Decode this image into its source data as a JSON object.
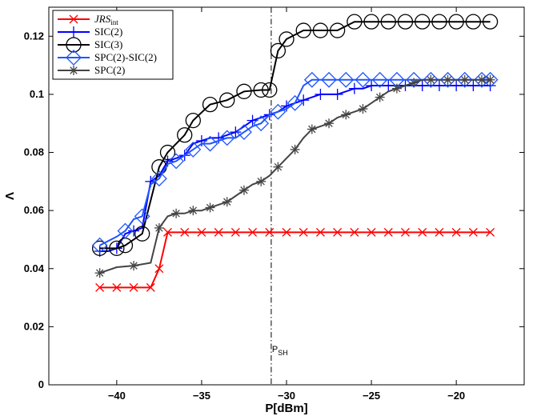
{
  "chart_data": {
    "type": "line",
    "xlabel": "P[dBm]",
    "ylabel": "Λ",
    "xlim": [
      -44,
      -16
    ],
    "ylim": [
      0,
      0.13
    ],
    "xticks": [
      -40,
      -35,
      -30,
      -25,
      -20
    ],
    "xtick_labels": [
      "−40",
      "−35",
      "−30",
      "−25",
      "−20"
    ],
    "yticks": [
      0,
      0.02,
      0.04,
      0.06,
      0.08,
      0.1,
      0.12
    ],
    "ytick_labels": [
      "0",
      "0.02",
      "0.04",
      "0.06",
      "0.08",
      "0.1",
      "0.12"
    ],
    "grid": false,
    "legend_position": "top-left",
    "vline": {
      "x": -30.9,
      "label_main": "P",
      "label_sub": "SH"
    },
    "series": [
      {
        "name": "JRS_int",
        "legend_main": "JRS",
        "legend_sub": "int",
        "color": "#ff0000",
        "marker": "x",
        "x": [
          -41,
          -40,
          -39,
          -38,
          -37.5,
          -37,
          -36,
          -35,
          -34,
          -33,
          -32,
          -31,
          -30,
          -29,
          -28,
          -27,
          -26,
          -25,
          -24,
          -23,
          -22,
          -21,
          -20,
          -19,
          -18
        ],
        "y": [
          0.0335,
          0.0335,
          0.0335,
          0.0335,
          0.04,
          0.0525,
          0.0525,
          0.0525,
          0.0525,
          0.0525,
          0.0525,
          0.0525,
          0.0525,
          0.0525,
          0.0525,
          0.0525,
          0.0525,
          0.0525,
          0.0525,
          0.0525,
          0.0525,
          0.0525,
          0.0525,
          0.0525,
          0.0525
        ]
      },
      {
        "name": "SIC(2)",
        "color": "#0000ff",
        "marker": "+",
        "x": [
          -41,
          -40.5,
          -40,
          -39.5,
          -39,
          -38.5,
          -38,
          -37.5,
          -37,
          -36.5,
          -36,
          -35.5,
          -35,
          -34.5,
          -34,
          -33.5,
          -33,
          -32.5,
          -32,
          -31.5,
          -31,
          -30.5,
          -30,
          -29.5,
          -29,
          -28.5,
          -28,
          -27.5,
          -27,
          -26.5,
          -26,
          -25.5,
          -25,
          -24.5,
          -24,
          -23.5,
          -23,
          -22.5,
          -22,
          -21.5,
          -21,
          -20.5,
          -20,
          -19.5,
          -19,
          -18.5,
          -18
        ],
        "y": [
          0.046,
          0.046,
          0.047,
          0.052,
          0.053,
          0.054,
          0.07,
          0.072,
          0.077,
          0.078,
          0.079,
          0.083,
          0.084,
          0.085,
          0.085,
          0.086,
          0.087,
          0.089,
          0.091,
          0.092,
          0.093,
          0.094,
          0.096,
          0.097,
          0.098,
          0.099,
          0.1,
          0.1,
          0.1,
          0.101,
          0.102,
          0.102,
          0.103,
          0.103,
          0.103,
          0.103,
          0.103,
          0.103,
          0.103,
          0.103,
          0.103,
          0.103,
          0.103,
          0.103,
          0.103,
          0.103,
          0.103
        ]
      },
      {
        "name": "SIC(3)",
        "color": "#000000",
        "marker": "o",
        "x": [
          -41,
          -40,
          -39.5,
          -38.5,
          -37.5,
          -37,
          -36,
          -35.5,
          -34.5,
          -33.5,
          -32.5,
          -31.5,
          -31,
          -30.5,
          -30,
          -29,
          -28,
          -27,
          -26,
          -25,
          -24,
          -23,
          -22,
          -21,
          -20,
          -19,
          -18
        ],
        "y": [
          0.047,
          0.047,
          0.048,
          0.052,
          0.075,
          0.08,
          0.086,
          0.091,
          0.0965,
          0.098,
          0.101,
          0.1015,
          0.1015,
          0.115,
          0.119,
          0.122,
          0.122,
          0.122,
          0.125,
          0.125,
          0.125,
          0.125,
          0.125,
          0.125,
          0.125,
          0.125,
          0.125
        ]
      },
      {
        "name": "SPC(2)-SIC(2)",
        "color": "#1f55ff",
        "marker": "diamond",
        "x": [
          -41,
          -40,
          -39.5,
          -39,
          -38.5,
          -38,
          -37.5,
          -37,
          -36.5,
          -36,
          -35.5,
          -35,
          -34.5,
          -34,
          -33.5,
          -33,
          -32.5,
          -32,
          -31.5,
          -31,
          -30.5,
          -30,
          -29.5,
          -29,
          -28.5,
          -28,
          -27.5,
          -27,
          -26.5,
          -26,
          -25.5,
          -25,
          -24.5,
          -24,
          -23.5,
          -23,
          -22.5,
          -22,
          -21.5,
          -21,
          -20.5,
          -20,
          -19.5,
          -19,
          -18.5,
          -18
        ],
        "y": [
          0.048,
          0.051,
          0.053,
          0.057,
          0.058,
          0.069,
          0.071,
          0.076,
          0.077,
          0.079,
          0.081,
          0.083,
          0.083,
          0.084,
          0.085,
          0.085,
          0.087,
          0.089,
          0.09,
          0.093,
          0.094,
          0.095,
          0.097,
          0.103,
          0.105,
          0.105,
          0.105,
          0.105,
          0.105,
          0.105,
          0.105,
          0.105,
          0.105,
          0.105,
          0.105,
          0.105,
          0.105,
          0.105,
          0.105,
          0.105,
          0.105,
          0.105,
          0.105,
          0.105,
          0.105,
          0.105
        ]
      },
      {
        "name": "SPC(2)",
        "color": "#444444",
        "marker": "*",
        "x": [
          -41,
          -40,
          -39,
          -38,
          -37.5,
          -37,
          -36.5,
          -36,
          -35.5,
          -35,
          -34.5,
          -34,
          -33.5,
          -33,
          -32.5,
          -32,
          -31.5,
          -31,
          -30.5,
          -30,
          -29.5,
          -29,
          -28.5,
          -28,
          -27.5,
          -27,
          -26.5,
          -26,
          -25.5,
          -25,
          -24.5,
          -24,
          -23.5,
          -23,
          -22.5,
          -22,
          -21.5,
          -21,
          -20.5,
          -20,
          -19.5,
          -19,
          -18.5,
          -18
        ],
        "y": [
          0.0385,
          0.0405,
          0.041,
          0.042,
          0.054,
          0.058,
          0.059,
          0.059,
          0.06,
          0.06,
          0.061,
          0.062,
          0.063,
          0.065,
          0.067,
          0.069,
          0.07,
          0.072,
          0.075,
          0.078,
          0.081,
          0.085,
          0.088,
          0.089,
          0.09,
          0.092,
          0.093,
          0.094,
          0.095,
          0.097,
          0.099,
          0.101,
          0.102,
          0.103,
          0.104,
          0.105,
          0.105,
          0.105,
          0.105,
          0.105,
          0.105,
          0.105,
          0.105,
          0.105
        ]
      }
    ]
  }
}
